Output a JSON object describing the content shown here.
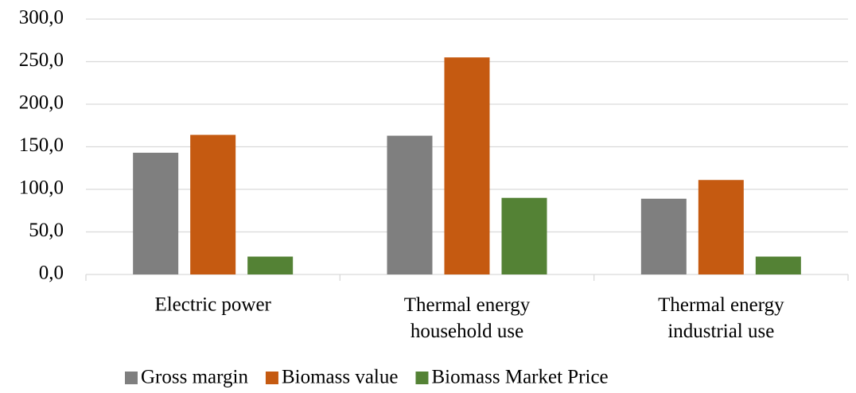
{
  "chart_data": {
    "type": "bar",
    "categories": [
      "Electric power",
      "Thermal energy household use",
      "Thermal energy industrial use"
    ],
    "series": [
      {
        "name": "Gross margin",
        "color": "#7f7f7f",
        "values": [
          143,
          163,
          89
        ]
      },
      {
        "name": "Biomass value",
        "color": "#c55a11",
        "values": [
          164,
          255,
          111
        ]
      },
      {
        "name": "Biomass Market Price",
        "color": "#548235",
        "values": [
          21,
          90,
          21
        ]
      }
    ],
    "ylim": [
      0,
      300
    ],
    "yticks": [
      {
        "value": 0,
        "label": "0,0"
      },
      {
        "value": 50,
        "label": "50,0"
      },
      {
        "value": 100,
        "label": "100,0"
      },
      {
        "value": 150,
        "label": "150,0"
      },
      {
        "value": 200,
        "label": "200,0"
      },
      {
        "value": 250,
        "label": "250,0"
      },
      {
        "value": 300,
        "label": "300,0"
      }
    ],
    "grid": true,
    "legend": "bottom"
  }
}
